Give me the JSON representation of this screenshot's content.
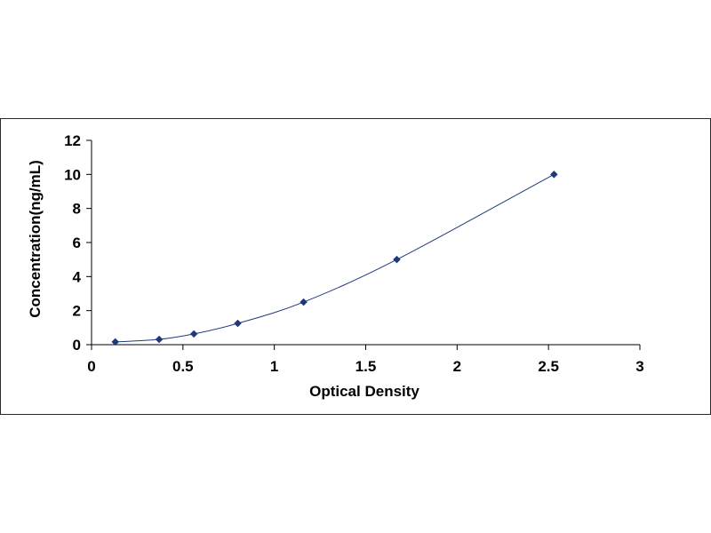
{
  "chart_data": {
    "type": "scatter",
    "title": "",
    "xlabel": "Optical Density",
    "ylabel": "Concentration(ng/mL)",
    "xlim": [
      0,
      3
    ],
    "ylim": [
      0,
      12
    ],
    "x_ticks": [
      "0",
      "0.5",
      "1",
      "1.5",
      "2",
      "2.5",
      "3"
    ],
    "y_ticks": [
      "0",
      "2",
      "4",
      "6",
      "8",
      "10",
      "12"
    ],
    "grid": false,
    "legend": "none",
    "series": [
      {
        "x": [
          0.13,
          0.37,
          0.56,
          0.8,
          1.16,
          1.67,
          2.53
        ],
        "y": [
          0.16,
          0.31,
          0.63,
          1.25,
          2.5,
          5,
          10
        ],
        "color": "#1f3a7a",
        "marker": "diamond",
        "fit_line": "smooth curve"
      }
    ]
  }
}
